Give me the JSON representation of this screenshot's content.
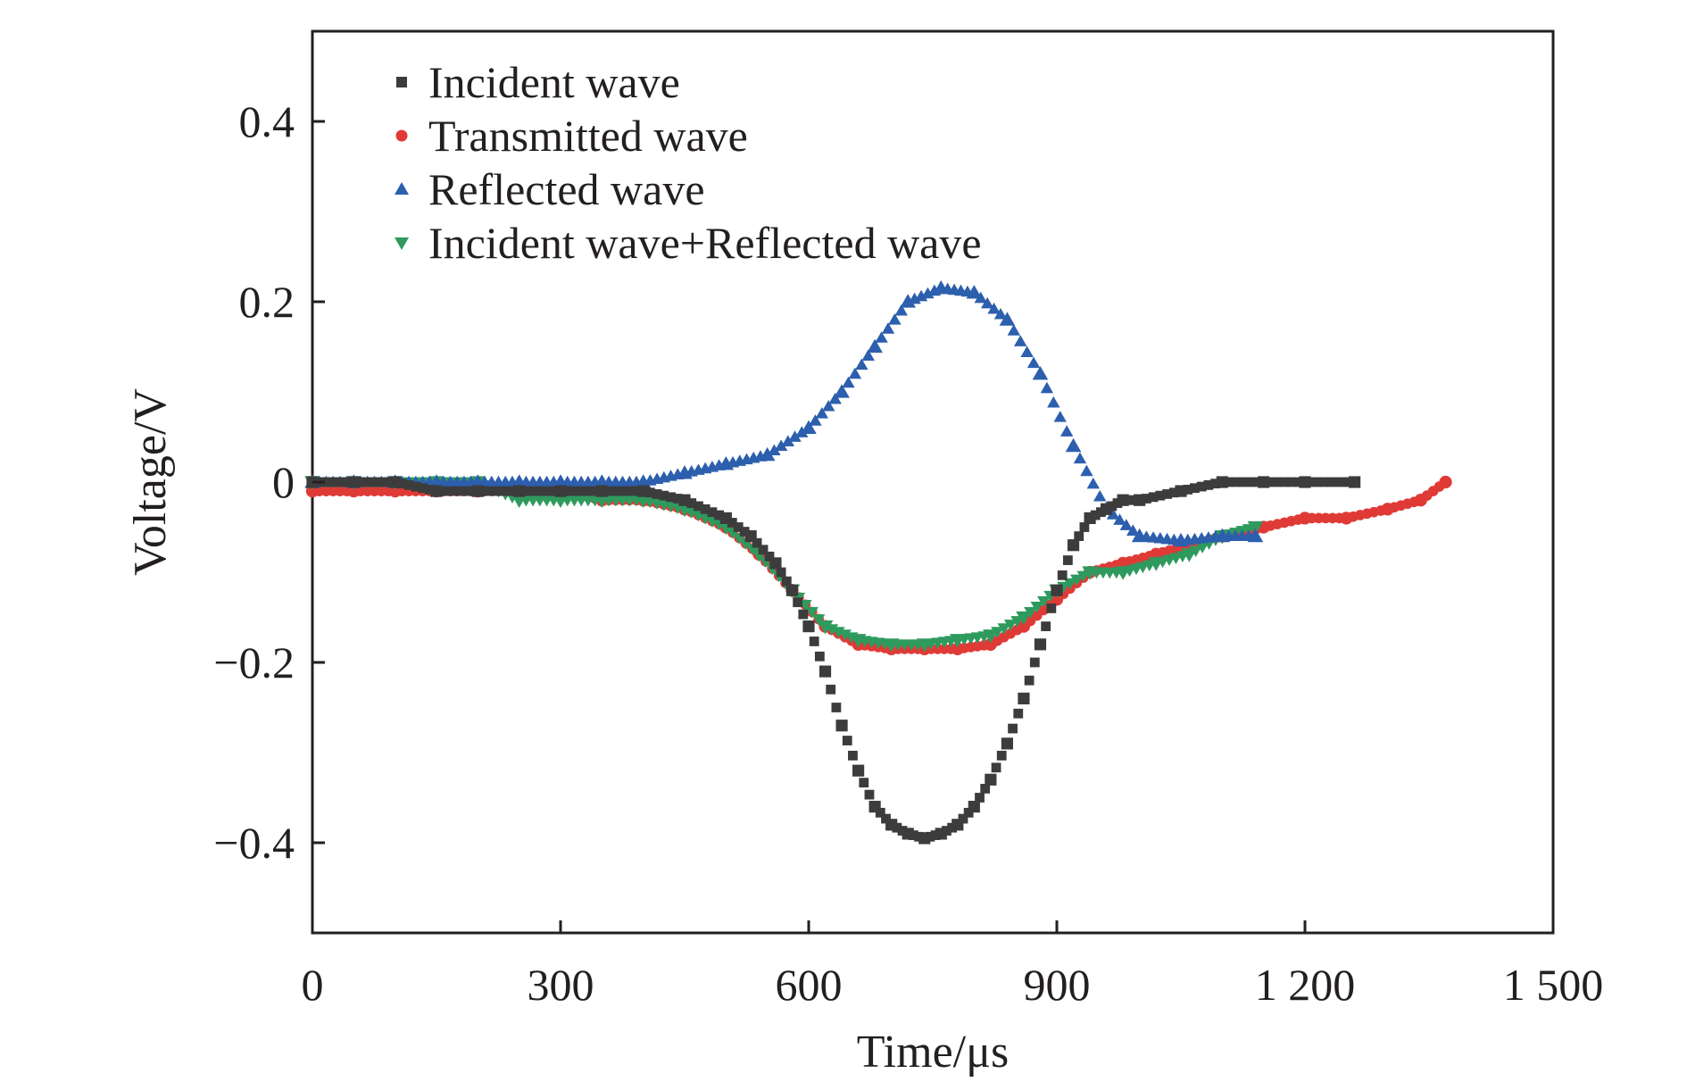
{
  "chart_data": {
    "type": "scatter",
    "title": "",
    "xlabel": "Time/μs",
    "ylabel": "Voltage/V",
    "xlim": [
      0,
      1500
    ],
    "ylim": [
      -0.5,
      0.5
    ],
    "x_ticks": [
      0,
      300,
      600,
      900,
      1200,
      1500
    ],
    "x_tick_labels": [
      "0",
      "300",
      "600",
      "900",
      "1 200",
      "1 500"
    ],
    "y_ticks": [
      -0.4,
      -0.2,
      0,
      0.2,
      0.4
    ],
    "y_tick_labels": [
      "−0.4",
      "−0.2",
      "0",
      "0.2",
      "0.4"
    ],
    "grid": false,
    "legend_position": "top-left",
    "series": [
      {
        "name": "Incident wave",
        "color": "#3c3c3c",
        "marker": "square",
        "x": [
          0,
          50,
          100,
          150,
          200,
          250,
          300,
          350,
          400,
          450,
          500,
          530,
          560,
          580,
          600,
          620,
          640,
          660,
          680,
          700,
          720,
          740,
          760,
          780,
          800,
          820,
          840,
          860,
          880,
          900,
          920,
          940,
          960,
          980,
          1000,
          1050,
          1100,
          1150,
          1200,
          1260
        ],
        "y": [
          0.0,
          0.0,
          0.0,
          -0.01,
          -0.01,
          -0.01,
          -0.01,
          -0.01,
          -0.01,
          -0.02,
          -0.04,
          -0.06,
          -0.09,
          -0.12,
          -0.16,
          -0.21,
          -0.27,
          -0.32,
          -0.36,
          -0.38,
          -0.39,
          -0.395,
          -0.39,
          -0.38,
          -0.36,
          -0.33,
          -0.29,
          -0.24,
          -0.18,
          -0.12,
          -0.07,
          -0.04,
          -0.03,
          -0.02,
          -0.02,
          -0.01,
          0.0,
          0.0,
          0.0,
          0.0
        ]
      },
      {
        "name": "Transmitted wave",
        "color": "#e03a36",
        "marker": "circle",
        "x": [
          0,
          50,
          100,
          150,
          200,
          250,
          300,
          350,
          400,
          450,
          500,
          540,
          580,
          620,
          660,
          700,
          740,
          780,
          820,
          860,
          900,
          940,
          980,
          1020,
          1060,
          1100,
          1150,
          1200,
          1250,
          1300,
          1340,
          1370
        ],
        "y": [
          -0.01,
          -0.01,
          -0.01,
          -0.01,
          -0.01,
          -0.01,
          -0.01,
          -0.02,
          -0.02,
          -0.03,
          -0.05,
          -0.08,
          -0.12,
          -0.16,
          -0.18,
          -0.185,
          -0.185,
          -0.185,
          -0.18,
          -0.16,
          -0.13,
          -0.1,
          -0.09,
          -0.08,
          -0.07,
          -0.06,
          -0.05,
          -0.04,
          -0.04,
          -0.03,
          -0.02,
          0.0
        ]
      },
      {
        "name": "Reflected wave",
        "color": "#2c5fad",
        "marker": "triangle-up",
        "x": [
          0,
          50,
          100,
          150,
          200,
          250,
          300,
          350,
          400,
          450,
          500,
          550,
          600,
          640,
          680,
          720,
          760,
          800,
          840,
          880,
          920,
          960,
          1000,
          1050,
          1100,
          1140
        ],
        "y": [
          0.0,
          0.0,
          0.0,
          0.0,
          0.0,
          0.0,
          0.0,
          0.0,
          0.0,
          0.01,
          0.02,
          0.03,
          0.06,
          0.1,
          0.15,
          0.2,
          0.215,
          0.21,
          0.18,
          0.12,
          0.04,
          -0.03,
          -0.06,
          -0.065,
          -0.06,
          -0.06
        ]
      },
      {
        "name": "Incident wave+Reflected wave",
        "color": "#2e9a5e",
        "marker": "triangle-down",
        "x": [
          0,
          50,
          100,
          150,
          200,
          250,
          300,
          350,
          400,
          450,
          500,
          540,
          580,
          620,
          660,
          700,
          740,
          780,
          820,
          860,
          900,
          940,
          980,
          1020,
          1060,
          1100,
          1140
        ],
        "y": [
          0.0,
          0.0,
          0.0,
          0.0,
          0.0,
          -0.02,
          -0.02,
          -0.02,
          -0.02,
          -0.03,
          -0.05,
          -0.08,
          -0.12,
          -0.16,
          -0.175,
          -0.18,
          -0.18,
          -0.175,
          -0.17,
          -0.15,
          -0.12,
          -0.1,
          -0.1,
          -0.09,
          -0.08,
          -0.06,
          -0.05
        ]
      }
    ]
  }
}
